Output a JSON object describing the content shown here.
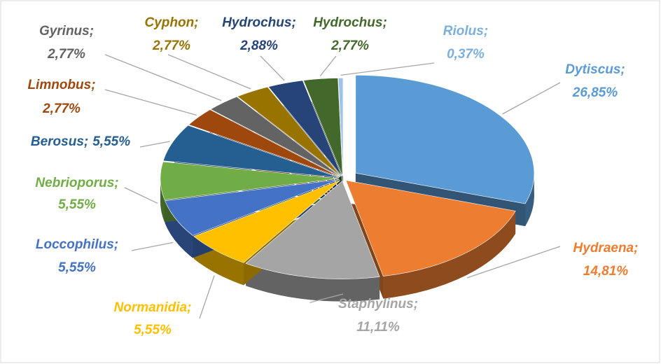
{
  "chart_data": {
    "type": "pie3d",
    "categories": [
      "Dytiscus;",
      "Hydraena;",
      "Staphylinus;",
      "Normanidia;",
      "Loccophilus;",
      "Nebrioporus;",
      "Berosus;",
      "Limnobus;",
      "Gyrinus;",
      "Cyphon;",
      "Hydrochus;",
      "Hydrochus;",
      "Riolus;"
    ],
    "values": [
      26.85,
      14.81,
      11.11,
      5.55,
      5.55,
      5.55,
      5.55,
      2.77,
      2.77,
      2.77,
      2.88,
      2.77,
      0.37
    ],
    "value_labels": [
      "26,85%",
      "14,81%",
      "11,11%",
      "5,55%",
      "5,55%",
      "5,55%",
      "5,55%",
      "2,77%",
      "2,77%",
      "2,77%",
      "2,88%",
      "2,77%",
      "0,37%"
    ],
    "colors": [
      "#5b9bd5",
      "#ed7d31",
      "#a5a5a5",
      "#ffc000",
      "#4472c4",
      "#70ad47",
      "#255e91",
      "#9e480e",
      "#636363",
      "#997300",
      "#264478",
      "#43682b",
      "#9dc3e6"
    ],
    "label_colors": [
      "#5b9bd5",
      "#ed7d31",
      "#a5a5a5",
      "#ffc000",
      "#4472c4",
      "#70ad47",
      "#255e91",
      "#9e480e",
      "#636363",
      "#997300",
      "#264478",
      "#43682b",
      "#7cafdd"
    ]
  }
}
